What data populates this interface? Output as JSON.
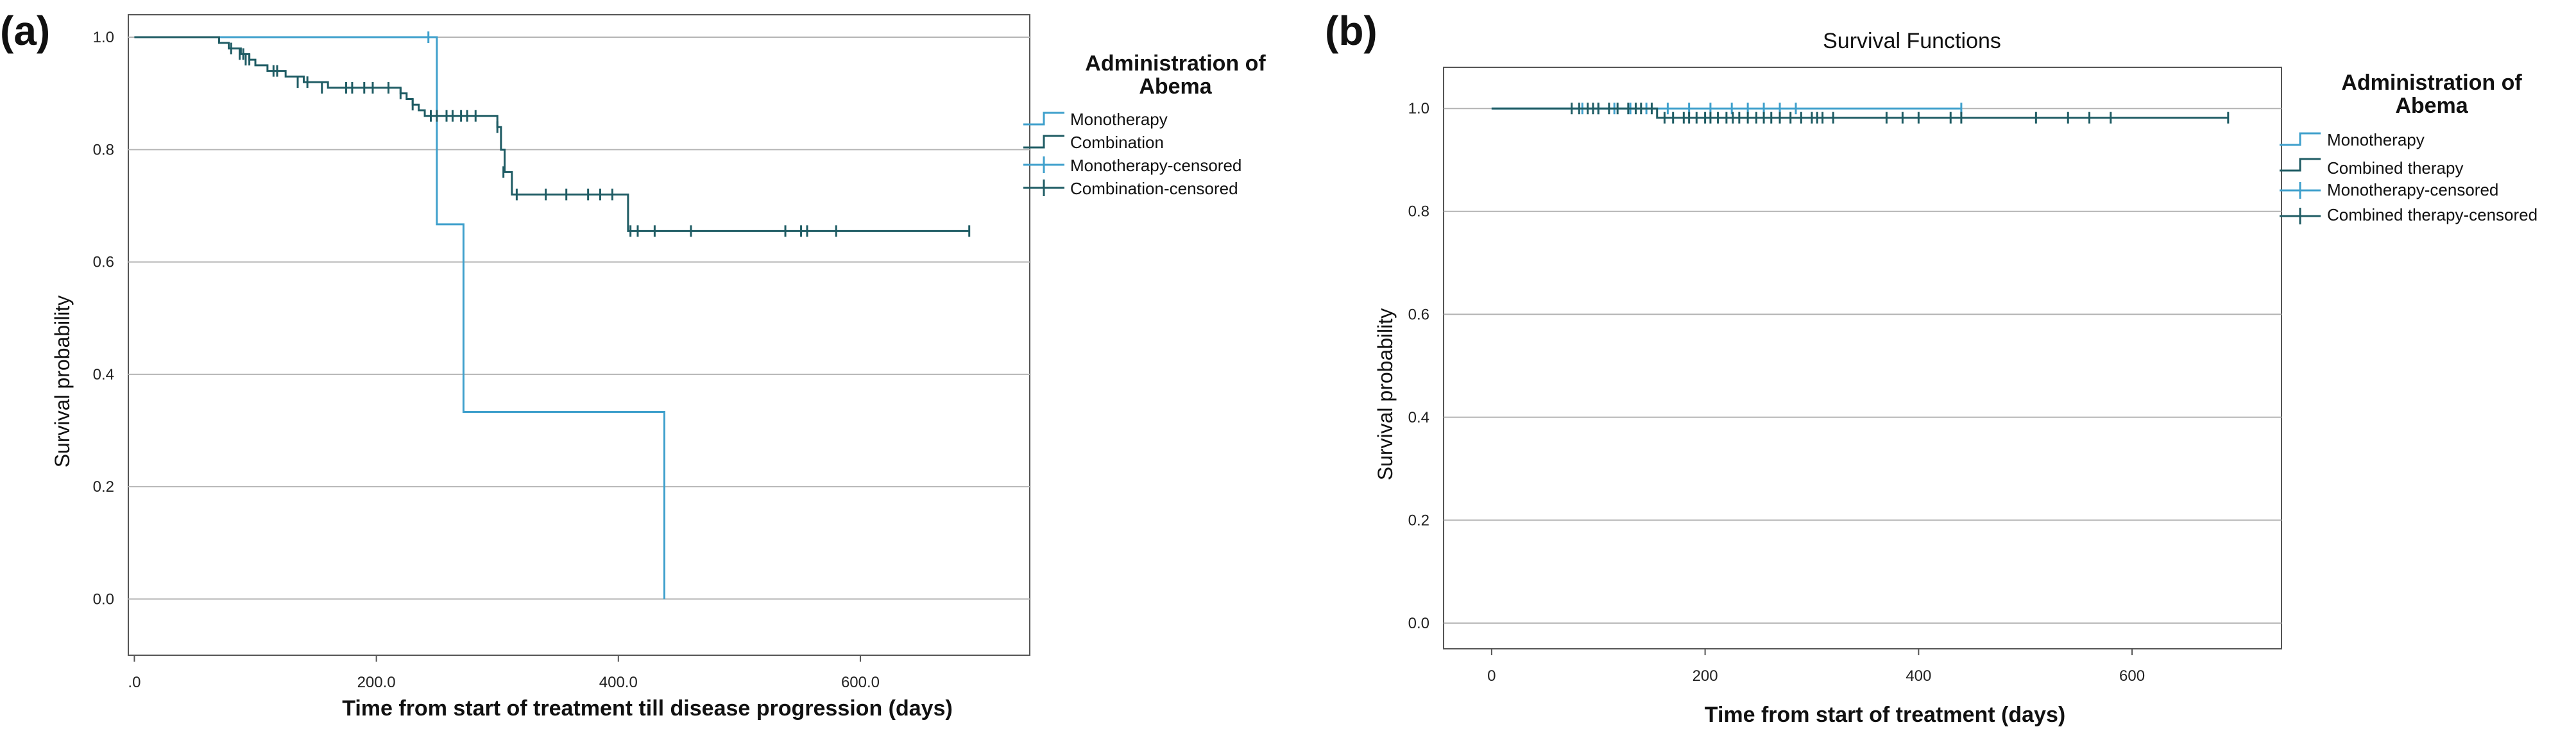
{
  "colors": {
    "monotherapy": "#3fa0cc",
    "combination": "#1f5c64",
    "grid": "#b4b4b4",
    "axis": "#555555"
  },
  "chart_data": [
    {
      "panel": "(a)",
      "type": "line",
      "title": "",
      "xlabel": "Time from start of treatment till disease progression (days)",
      "ylabel": "Survival probability",
      "xlim": [
        -5,
        740
      ],
      "ylim": [
        -0.1,
        1.04
      ],
      "xticks": [
        0,
        200,
        400,
        600
      ],
      "xtick_labels": [
        ".0",
        "200.0",
        "400.0",
        "600.0"
      ],
      "yticks": [
        0.0,
        0.2,
        0.4,
        0.6,
        0.8,
        1.0
      ],
      "ytick_labels": [
        "0.0",
        "0.2",
        "0.4",
        "0.6",
        "0.8",
        "1.0"
      ],
      "grid": "horizontal",
      "legend": {
        "title_lines": [
          "Administration of",
          "Abema"
        ],
        "placement": "right",
        "entries": [
          {
            "label": "Monotherapy",
            "kind": "step",
            "series": "monotherapy"
          },
          {
            "label": "Combination",
            "kind": "step",
            "series": "combination"
          },
          {
            "label": "Monotherapy-censored",
            "kind": "cross",
            "series": "monotherapy"
          },
          {
            "label": "Combination-censored",
            "kind": "cross",
            "series": "combination"
          }
        ]
      },
      "series": [
        {
          "name": "Monotherapy",
          "key": "monotherapy",
          "steps": [
            [
              0,
              1.0
            ],
            [
              250,
              0.667
            ],
            [
              272,
              0.333
            ],
            [
              438,
              0.0
            ]
          ],
          "end_x": 438,
          "censored": [
            [
              243,
              1.0
            ]
          ]
        },
        {
          "name": "Combination",
          "key": "combination",
          "steps": [
            [
              0,
              1.0
            ],
            [
              70,
              0.99
            ],
            [
              78,
              0.98
            ],
            [
              88,
              0.97
            ],
            [
              95,
              0.96
            ],
            [
              100,
              0.95
            ],
            [
              110,
              0.94
            ],
            [
              125,
              0.93
            ],
            [
              140,
              0.92
            ],
            [
              160,
              0.91
            ],
            [
              220,
              0.9
            ],
            [
              225,
              0.89
            ],
            [
              230,
              0.88
            ],
            [
              235,
              0.87
            ],
            [
              240,
              0.86
            ],
            [
              300,
              0.84
            ],
            [
              303,
              0.8
            ],
            [
              306,
              0.76
            ],
            [
              312,
              0.72
            ],
            [
              408,
              0.655
            ]
          ],
          "end_x": 690,
          "censored": [
            [
              80,
              0.98
            ],
            [
              87,
              0.97
            ],
            [
              90,
              0.97
            ],
            [
              92,
              0.96
            ],
            [
              95,
              0.96
            ],
            [
              115,
              0.94
            ],
            [
              118,
              0.94
            ],
            [
              135,
              0.92
            ],
            [
              143,
              0.92
            ],
            [
              155,
              0.91
            ],
            [
              175,
              0.91
            ],
            [
              180,
              0.91
            ],
            [
              190,
              0.91
            ],
            [
              197,
              0.91
            ],
            [
              210,
              0.91
            ],
            [
              220,
              0.9
            ],
            [
              230,
              0.88
            ],
            [
              245,
              0.86
            ],
            [
              250,
              0.86
            ],
            [
              258,
              0.86
            ],
            [
              263,
              0.86
            ],
            [
              270,
              0.86
            ],
            [
              275,
              0.86
            ],
            [
              282,
              0.86
            ],
            [
              300,
              0.84
            ],
            [
              305,
              0.76
            ],
            [
              316,
              0.72
            ],
            [
              340,
              0.72
            ],
            [
              357,
              0.72
            ],
            [
              375,
              0.72
            ],
            [
              385,
              0.72
            ],
            [
              395,
              0.72
            ],
            [
              410,
              0.655
            ],
            [
              416,
              0.655
            ],
            [
              430,
              0.655
            ],
            [
              460,
              0.655
            ],
            [
              538,
              0.655
            ],
            [
              551,
              0.655
            ],
            [
              556,
              0.655
            ],
            [
              580,
              0.655
            ],
            [
              690,
              0.655
            ]
          ]
        }
      ]
    },
    {
      "panel": "(b)",
      "type": "line",
      "title": "Survival Functions",
      "xlabel": "Time from start of treatment (days)",
      "ylabel": "Survival probability",
      "xlim": [
        -45,
        740
      ],
      "ylim": [
        -0.05,
        1.08
      ],
      "xticks": [
        0,
        200,
        400,
        600
      ],
      "xtick_labels": [
        "0",
        "200",
        "400",
        "600"
      ],
      "yticks": [
        0.0,
        0.2,
        0.4,
        0.6,
        0.8,
        1.0
      ],
      "ytick_labels": [
        "0.0",
        "0.2",
        "0.4",
        "0.6",
        "0.8",
        "1.0"
      ],
      "grid": "horizontal",
      "legend": {
        "title_lines": [
          "Administration of",
          "Abema"
        ],
        "placement": "right",
        "entries": [
          {
            "label": "Monotherapy",
            "kind": "step",
            "series": "monotherapy"
          },
          {
            "label": "Combined therapy",
            "kind": "step",
            "series": "combination"
          },
          {
            "label": "Monotherapy-censored",
            "kind": "cross",
            "series": "monotherapy"
          },
          {
            "label": "Combined therapy-censored",
            "kind": "cross",
            "series": "combination"
          }
        ]
      },
      "series": [
        {
          "name": "Monotherapy",
          "key": "monotherapy",
          "steps": [
            [
              0,
              1.0
            ]
          ],
          "end_x": 440,
          "censored": [
            [
              85,
              1.0
            ],
            [
              100,
              1.0
            ],
            [
              115,
              1.0
            ],
            [
              130,
              1.0
            ],
            [
              145,
              1.0
            ],
            [
              165,
              1.0
            ],
            [
              185,
              1.0
            ],
            [
              205,
              1.0
            ],
            [
              225,
              1.0
            ],
            [
              240,
              1.0
            ],
            [
              255,
              1.0
            ],
            [
              270,
              1.0
            ],
            [
              285,
              1.0
            ],
            [
              440,
              1.0
            ]
          ]
        },
        {
          "name": "Combined therapy",
          "key": "combination",
          "steps": [
            [
              0,
              1.0
            ],
            [
              155,
              0.982
            ]
          ],
          "end_x": 690,
          "censored": [
            [
              75,
              1.0
            ],
            [
              82,
              1.0
            ],
            [
              90,
              1.0
            ],
            [
              95,
              1.0
            ],
            [
              100,
              1.0
            ],
            [
              110,
              1.0
            ],
            [
              118,
              1.0
            ],
            [
              128,
              1.0
            ],
            [
              135,
              1.0
            ],
            [
              140,
              1.0
            ],
            [
              150,
              1.0
            ],
            [
              162,
              0.982
            ],
            [
              170,
              0.982
            ],
            [
              180,
              0.982
            ],
            [
              185,
              0.982
            ],
            [
              192,
              0.982
            ],
            [
              200,
              0.982
            ],
            [
              205,
              0.982
            ],
            [
              212,
              0.982
            ],
            [
              220,
              0.982
            ],
            [
              226,
              0.982
            ],
            [
              232,
              0.982
            ],
            [
              240,
              0.982
            ],
            [
              248,
              0.982
            ],
            [
              255,
              0.982
            ],
            [
              262,
              0.982
            ],
            [
              270,
              0.982
            ],
            [
              280,
              0.982
            ],
            [
              290,
              0.982
            ],
            [
              300,
              0.982
            ],
            [
              305,
              0.982
            ],
            [
              310,
              0.982
            ],
            [
              320,
              0.982
            ],
            [
              370,
              0.982
            ],
            [
              385,
              0.982
            ],
            [
              400,
              0.982
            ],
            [
              430,
              0.982
            ],
            [
              440,
              0.982
            ],
            [
              510,
              0.982
            ],
            [
              540,
              0.982
            ],
            [
              560,
              0.982
            ],
            [
              580,
              0.982
            ],
            [
              690,
              0.982
            ]
          ]
        }
      ]
    }
  ]
}
